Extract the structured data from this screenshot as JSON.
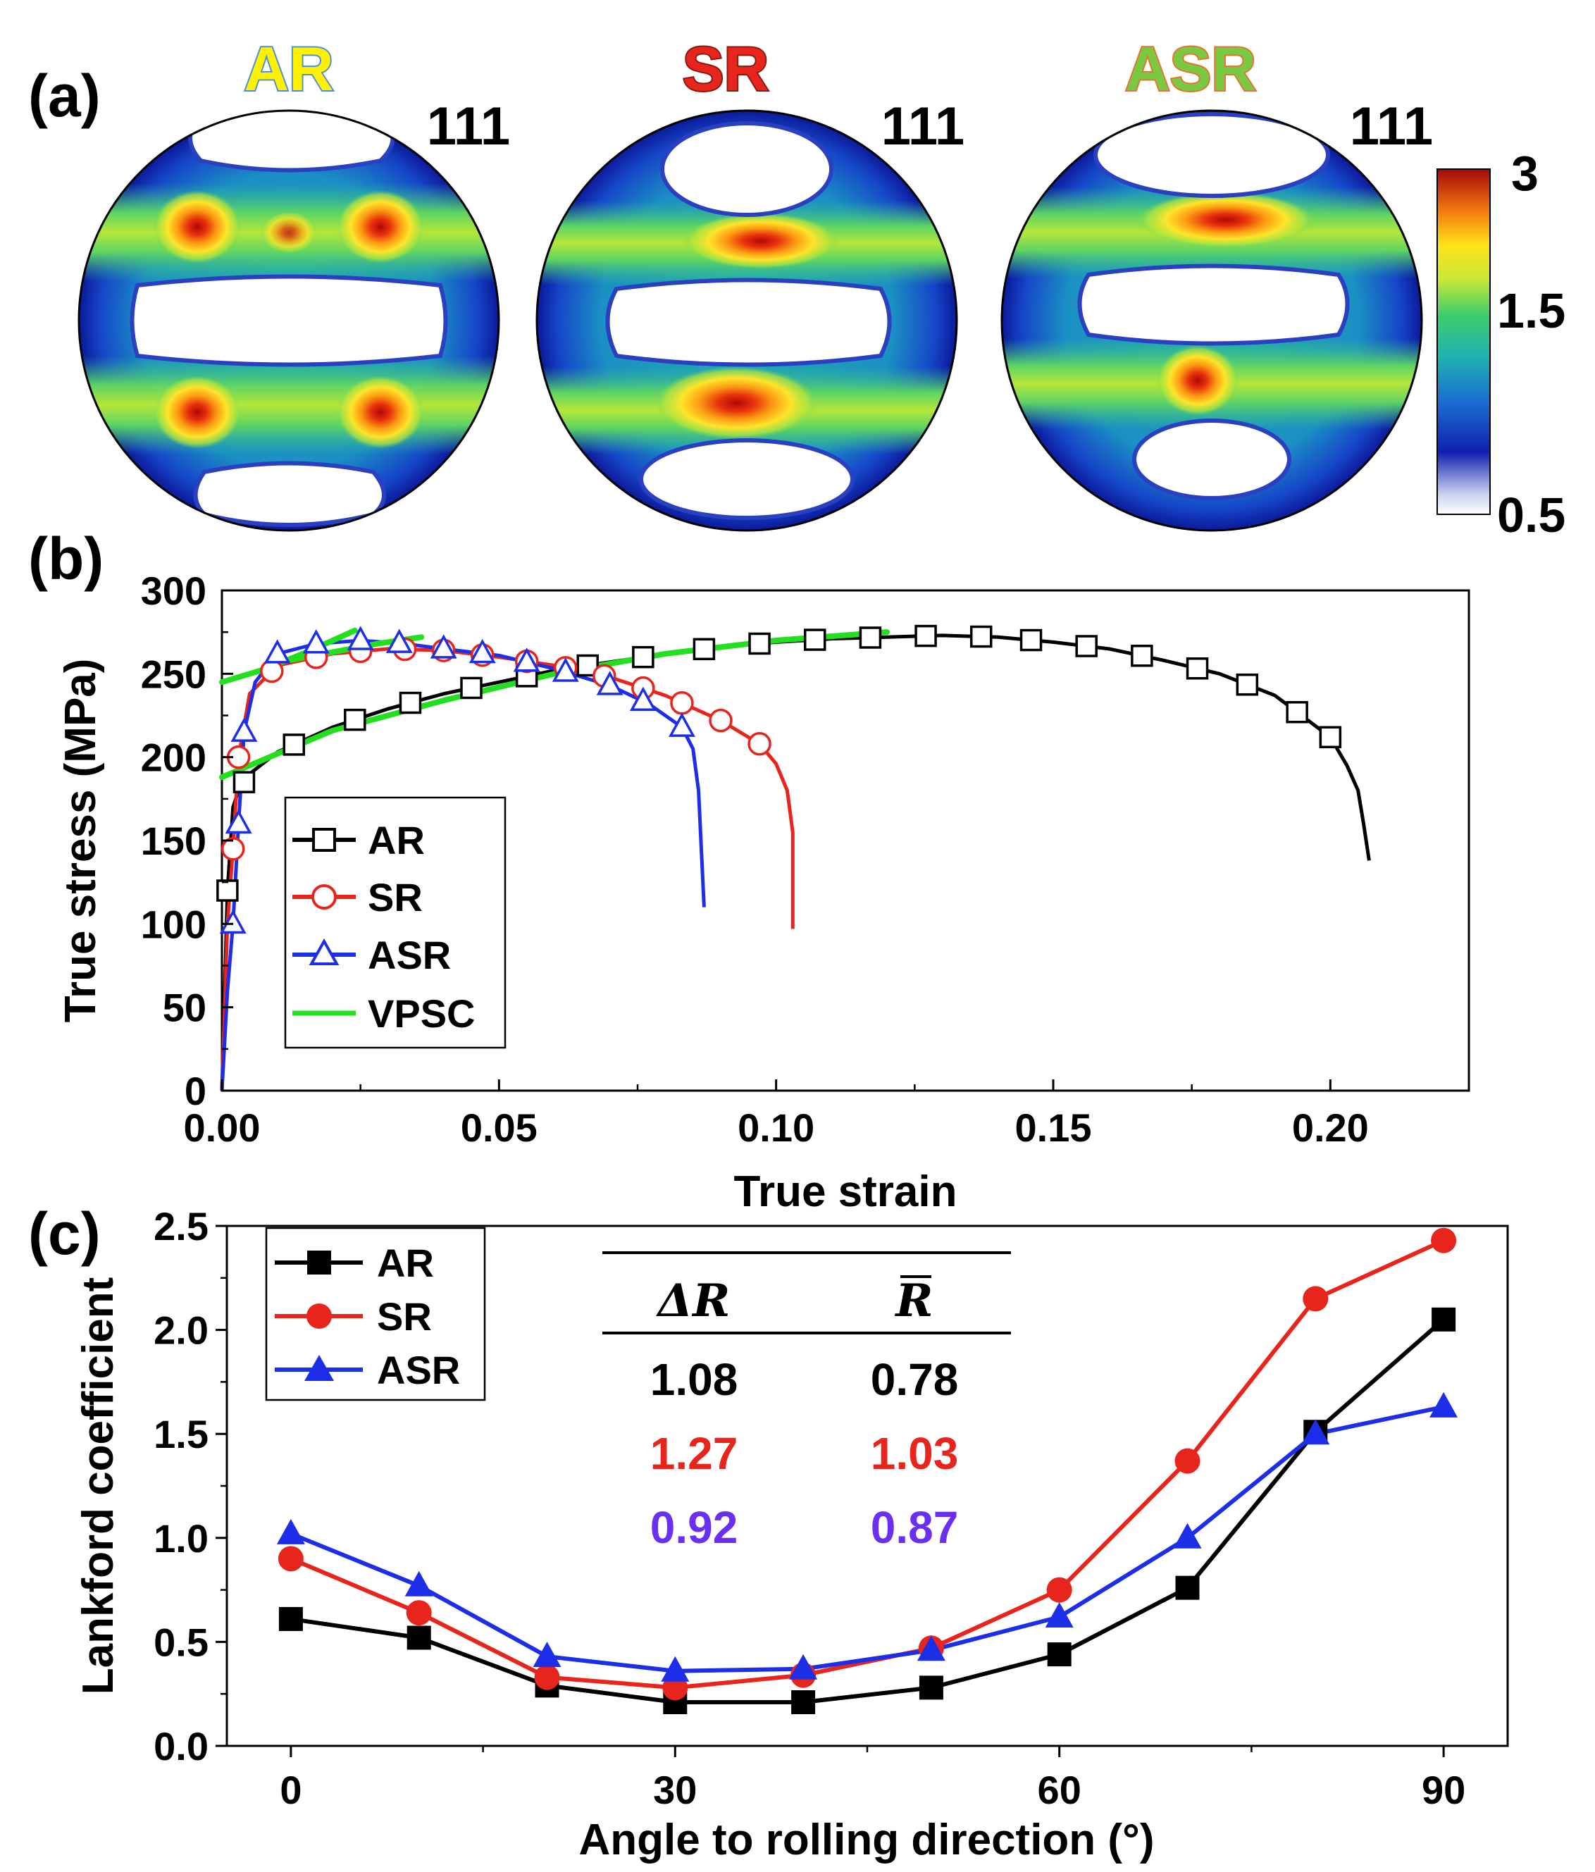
{
  "panel_a": {
    "label": "(a)",
    "pole_figures": [
      {
        "title": "AR",
        "title_color": "#fff200",
        "title_outline": "#4f8fd8",
        "plane": "111"
      },
      {
        "title": "SR",
        "title_color": "#e8251c",
        "title_outline": "#8a1a10",
        "plane": "111"
      },
      {
        "title": "ASR",
        "title_color": "#7ac943",
        "title_outline": "#e5762b",
        "plane": "111"
      }
    ],
    "colorbar": {
      "max_label": "3",
      "mid_label": "1.5",
      "min_label": "0.5"
    }
  },
  "chart_data": [
    {
      "id": "b",
      "panel_label": "(b)",
      "type": "line",
      "xlabel": "True strain",
      "ylabel": "True stress (MPa)",
      "xlim": [
        0,
        0.225
      ],
      "ylim": [
        0,
        300
      ],
      "xticks": [
        0.0,
        0.05,
        0.1,
        0.15,
        0.2
      ],
      "xtick_labels": [
        "0.00",
        "0.05",
        "0.10",
        "0.15",
        "0.20"
      ],
      "yticks": [
        0,
        50,
        100,
        150,
        200,
        250,
        300
      ],
      "ytick_labels": [
        "0",
        "50",
        "100",
        "150",
        "200",
        "250",
        "300"
      ],
      "legend": {
        "position": "center-left",
        "entries": [
          "AR",
          "SR",
          "ASR",
          "VPSC"
        ]
      },
      "series": [
        {
          "name": "AR",
          "color": "#000000",
          "marker": "square-open",
          "x": [
            0,
            0.001,
            0.002,
            0.003,
            0.005,
            0.01,
            0.02,
            0.03,
            0.04,
            0.05,
            0.06,
            0.07,
            0.08,
            0.09,
            0.1,
            0.11,
            0.12,
            0.13,
            0.14,
            0.15,
            0.16,
            0.17,
            0.18,
            0.19,
            0.2,
            0.203,
            0.205,
            0.206,
            0.207
          ],
          "y": [
            0,
            120,
            170,
            180,
            190,
            203,
            218,
            229,
            238,
            245,
            252,
            257,
            262,
            266,
            269,
            271,
            272,
            273,
            272,
            269,
            265,
            258,
            250,
            237,
            212,
            195,
            180,
            160,
            138
          ],
          "marker_x": [
            0.001,
            0.004,
            0.013,
            0.024,
            0.034,
            0.045,
            0.055,
            0.066,
            0.076,
            0.087,
            0.097,
            0.107,
            0.117,
            0.127,
            0.137,
            0.146,
            0.156,
            0.166,
            0.176,
            0.185,
            0.194,
            0.2
          ]
        },
        {
          "name": "SR",
          "color": "#e8251c",
          "marker": "circle-open",
          "x": [
            0,
            0.001,
            0.002,
            0.003,
            0.005,
            0.01,
            0.02,
            0.03,
            0.04,
            0.05,
            0.06,
            0.07,
            0.08,
            0.09,
            0.097,
            0.1,
            0.102,
            0.103,
            0.103
          ],
          "y": [
            0,
            100,
            145,
            200,
            238,
            255,
            262,
            265,
            264,
            260,
            255,
            248,
            237,
            222,
            208,
            196,
            180,
            155,
            97
          ],
          "marker_x": [
            0.002,
            0.003,
            0.009,
            0.017,
            0.025,
            0.033,
            0.04,
            0.047,
            0.055,
            0.062,
            0.069,
            0.076,
            0.083,
            0.09,
            0.097
          ]
        },
        {
          "name": "ASR",
          "color": "#1d2ee8",
          "marker": "triangle-open",
          "x": [
            0,
            0.001,
            0.002,
            0.003,
            0.004,
            0.006,
            0.01,
            0.017,
            0.025,
            0.033,
            0.04,
            0.05,
            0.06,
            0.07,
            0.077,
            0.083,
            0.085,
            0.086,
            0.087
          ],
          "y": [
            0,
            60,
            100,
            160,
            215,
            245,
            262,
            268,
            270,
            268,
            265,
            261,
            253,
            243,
            232,
            218,
            205,
            180,
            110
          ],
          "marker_x": [
            0.002,
            0.003,
            0.004,
            0.01,
            0.017,
            0.025,
            0.032,
            0.04,
            0.047,
            0.055,
            0.062,
            0.07,
            0.076,
            0.083
          ]
        },
        {
          "name": "VPSC",
          "color": "#22e01e",
          "marker": "none",
          "segments": [
            {
              "x": [
                0.0,
                0.02,
                0.04,
                0.06,
                0.08,
                0.1,
                0.12
              ],
              "y": [
                188,
                216,
                234,
                250,
                262,
                270,
                275
              ]
            },
            {
              "x": [
                0.0,
                0.008,
                0.016,
                0.024
              ],
              "y": [
                245,
                253,
                264,
                276
              ]
            },
            {
              "x": [
                0.012,
                0.02,
                0.028,
                0.036
              ],
              "y": [
                258,
                263,
                268,
                272
              ]
            }
          ]
        }
      ]
    },
    {
      "id": "c",
      "panel_label": "(c)",
      "type": "line",
      "xlabel": "Angle to rolling direction (°)",
      "ylabel": "Lankford coefficient",
      "xlim": [
        -5,
        95
      ],
      "ylim": [
        0,
        2.5
      ],
      "xticks": [
        0,
        30,
        60,
        90
      ],
      "xtick_labels": [
        "0",
        "30",
        "60",
        "90"
      ],
      "yticks": [
        0,
        0.5,
        1.0,
        1.5,
        2.0,
        2.5
      ],
      "ytick_labels": [
        "0.0",
        "0.5",
        "1.0",
        "1.5",
        "2.0",
        "2.5"
      ],
      "categories": [
        0,
        10,
        20,
        30,
        40,
        50,
        60,
        70,
        80,
        90
      ],
      "legend": {
        "position": "top-left",
        "entries": [
          "AR",
          "SR",
          "ASR"
        ]
      },
      "series": [
        {
          "name": "AR",
          "color": "#000000",
          "marker": "square-filled",
          "values": [
            0.61,
            0.52,
            0.29,
            0.21,
            0.21,
            0.28,
            0.44,
            0.76,
            1.51,
            2.05
          ]
        },
        {
          "name": "SR",
          "color": "#e8251c",
          "marker": "circle-filled",
          "values": [
            0.9,
            0.64,
            0.33,
            0.28,
            0.34,
            0.47,
            0.75,
            1.37,
            2.15,
            2.43
          ]
        },
        {
          "name": "ASR",
          "color": "#1d2ee8",
          "marker": "triangle-filled",
          "values": [
            1.02,
            0.77,
            0.43,
            0.36,
            0.37,
            0.46,
            0.62,
            1.0,
            1.5,
            1.63
          ]
        }
      ],
      "table": {
        "headers": [
          "ΔR",
          "R"
        ],
        "rows": [
          {
            "delta_r": "1.08",
            "r_bar": "0.78",
            "color": "#000000"
          },
          {
            "delta_r": "1.27",
            "r_bar": "1.03",
            "color": "#e8251c"
          },
          {
            "delta_r": "0.92",
            "r_bar": "0.87",
            "color": "#6a2ff0"
          }
        ]
      }
    }
  ]
}
